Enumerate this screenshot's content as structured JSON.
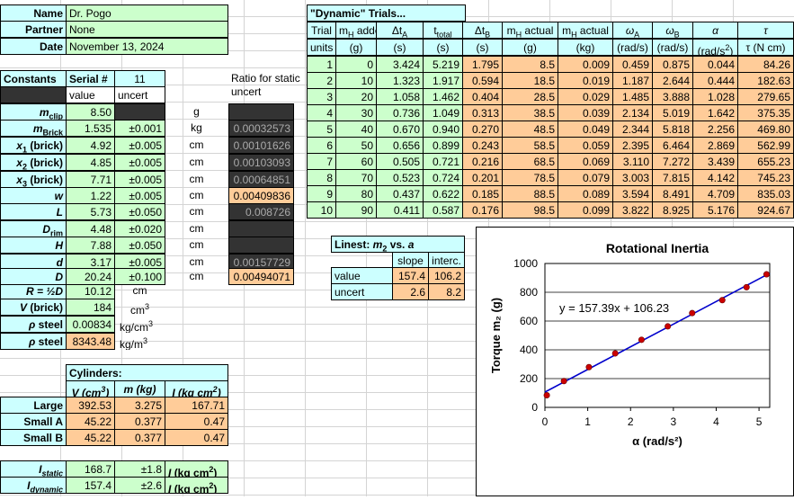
{
  "info": {
    "name_label": "Name",
    "name_value": "Dr. Pogo",
    "partner_label": "Partner",
    "partner_value": "None",
    "date_label": "Date",
    "date_value": "November 13, 2024"
  },
  "constants": {
    "header": "Constants",
    "serial_label": "Serial #",
    "serial_value": "11",
    "value_label": "value",
    "uncert_label": "uncert",
    "ratio_label": "Ratio for static uncert",
    "rows": [
      {
        "sym": "m",
        "sub": "clip",
        "value": "8.50",
        "uncert": "",
        "unit": "g",
        "ratio": ""
      },
      {
        "sym": "m",
        "sub": "Brick",
        "value": "1.535",
        "uncert": "±0.001",
        "unit": "kg",
        "ratio": "0.00032573"
      },
      {
        "sym": "x",
        "sub": "1",
        "tail": " (brick)",
        "value": "4.92",
        "uncert": "±0.005",
        "unit": "cm",
        "ratio": "0.00101626"
      },
      {
        "sym": "x",
        "sub": "2",
        "tail": " (brick)",
        "value": "4.85",
        "uncert": "±0.005",
        "unit": "cm",
        "ratio": "0.00103093"
      },
      {
        "sym": "x",
        "sub": "3",
        "tail": " (brick)",
        "value": "7.71",
        "uncert": "±0.005",
        "unit": "cm",
        "ratio": "0.00064851"
      },
      {
        "sym": "w",
        "sub": "",
        "value": "1.22",
        "uncert": "±0.005",
        "unit": "cm",
        "ratio": "0.00409836"
      },
      {
        "sym": "L",
        "sub": "",
        "value": "5.73",
        "uncert": "±0.050",
        "unit": "cm",
        "ratio": "0.008726"
      },
      {
        "sym": "D",
        "sub": "rim",
        "value": "4.48",
        "uncert": "±0.020",
        "unit": "cm",
        "ratio": ""
      },
      {
        "sym": "H",
        "sub": "",
        "value": "7.88",
        "uncert": "±0.050",
        "unit": "cm",
        "ratio": ""
      },
      {
        "sym": "d",
        "sub": "",
        "value": "3.17",
        "uncert": "±0.005",
        "unit": "cm",
        "ratio": "0.00157729"
      },
      {
        "sym": "D",
        "sub": "",
        "value": "20.24",
        "uncert": "±0.100",
        "unit": "cm",
        "ratio": "0.00494071"
      }
    ],
    "r_label": "R = ½D",
    "r_value": "10.12",
    "r_unit": "cm",
    "v_label": "V  (brick)",
    "v_value": "184",
    "v_unit": "cm",
    "rho1_label": "steel",
    "rho1_value": "0.00834",
    "rho1_unit": "kg/cm",
    "rho2_label": "steel",
    "rho2_value": "8343.48",
    "rho2_unit": "kg/m"
  },
  "cylinders": {
    "title": "Cylinders:",
    "head_v": "V (cm",
    "head_m": "m (kg)",
    "head_i": "I (kg cm",
    "rows": [
      {
        "name": "Large",
        "v": "392.53",
        "m": "3.275",
        "i": "167.71"
      },
      {
        "name": "Small A",
        "v": "45.22",
        "m": "0.377",
        "i": "0.47"
      },
      {
        "name": "Small B",
        "v": "45.22",
        "m": "0.377",
        "i": "0.47"
      }
    ]
  },
  "inertia": {
    "static_label": "static",
    "static_value": "168.7",
    "static_unc": "±1.8",
    "static_unit": "(kg cm",
    "dynamic_label": "dynamic",
    "dynamic_value": "157.4",
    "dynamic_unc": "±2.6",
    "dynamic_unit": "(kg cm"
  },
  "trials": {
    "title": "\"Dynamic\" Trials...",
    "headers": [
      "Trial",
      "mH added",
      "ΔtA",
      "ttotal",
      "ΔtB",
      "mH actual",
      "mH actual",
      "ωA",
      "ωB",
      "α",
      "τ"
    ],
    "units": [
      "units",
      "(g)",
      "(s)",
      "(s)",
      "(s)",
      "(g)",
      "(kg)",
      "(rad/s)",
      "(rad/s)",
      "(rad/s2)",
      "τ (N cm)"
    ],
    "rows": [
      [
        "1",
        "0",
        "3.424",
        "5.219",
        "1.795",
        "8.5",
        "0.009",
        "0.459",
        "0.875",
        "0.044",
        "84.26"
      ],
      [
        "2",
        "10",
        "1.323",
        "1.917",
        "0.594",
        "18.5",
        "0.019",
        "1.187",
        "2.644",
        "0.444",
        "182.63"
      ],
      [
        "3",
        "20",
        "1.058",
        "1.462",
        "0.404",
        "28.5",
        "0.029",
        "1.485",
        "3.888",
        "1.028",
        "279.65"
      ],
      [
        "4",
        "30",
        "0.736",
        "1.049",
        "0.313",
        "38.5",
        "0.039",
        "2.134",
        "5.019",
        "1.642",
        "375.35"
      ],
      [
        "5",
        "40",
        "0.670",
        "0.940",
        "0.270",
        "48.5",
        "0.049",
        "2.344",
        "5.818",
        "2.256",
        "469.80"
      ],
      [
        "6",
        "50",
        "0.656",
        "0.899",
        "0.243",
        "58.5",
        "0.059",
        "2.395",
        "6.464",
        "2.869",
        "562.99"
      ],
      [
        "7",
        "60",
        "0.505",
        "0.721",
        "0.216",
        "68.5",
        "0.069",
        "3.110",
        "7.272",
        "3.439",
        "655.23"
      ],
      [
        "8",
        "70",
        "0.523",
        "0.724",
        "0.201",
        "78.5",
        "0.079",
        "3.003",
        "7.815",
        "4.142",
        "745.23"
      ],
      [
        "9",
        "80",
        "0.437",
        "0.622",
        "0.185",
        "88.5",
        "0.089",
        "3.594",
        "8.491",
        "4.709",
        "835.03"
      ],
      [
        "10",
        "90",
        "0.411",
        "0.587",
        "0.176",
        "98.5",
        "0.099",
        "3.822",
        "8.925",
        "5.176",
        "924.67"
      ]
    ]
  },
  "linest": {
    "title": "Linest: m2 vs. a",
    "slope_label": "slope",
    "interc_label": "interc.",
    "value_label": "value",
    "slope_value": "157.4",
    "interc_value": "106.2",
    "uncert_label": "uncert",
    "slope_uncert": "2.6",
    "interc_uncert": "8.2"
  },
  "chart_data": {
    "type": "scatter",
    "title": "Rotational Inertia",
    "xlabel": "α (rad/s²)",
    "ylabel": "Torque m₂ (g)",
    "equation": "y = 157.39x + 106.23",
    "xlim": [
      0,
      5.25
    ],
    "ylim": [
      0,
      1000
    ],
    "xticks": [
      0,
      1,
      2,
      3,
      4,
      5
    ],
    "yticks": [
      0,
      200,
      400,
      600,
      800,
      1000
    ],
    "x": [
      0.044,
      0.444,
      1.028,
      1.642,
      2.256,
      2.869,
      3.439,
      4.142,
      4.709,
      5.176
    ],
    "y": [
      84.26,
      182.63,
      279.65,
      375.35,
      469.8,
      562.99,
      655.23,
      745.23,
      835.03,
      924.67
    ],
    "trendline": {
      "slope": 157.39,
      "intercept": 106.23
    },
    "marker_color": "#cc0000",
    "line_color": "#0000cc",
    "grid": true
  }
}
